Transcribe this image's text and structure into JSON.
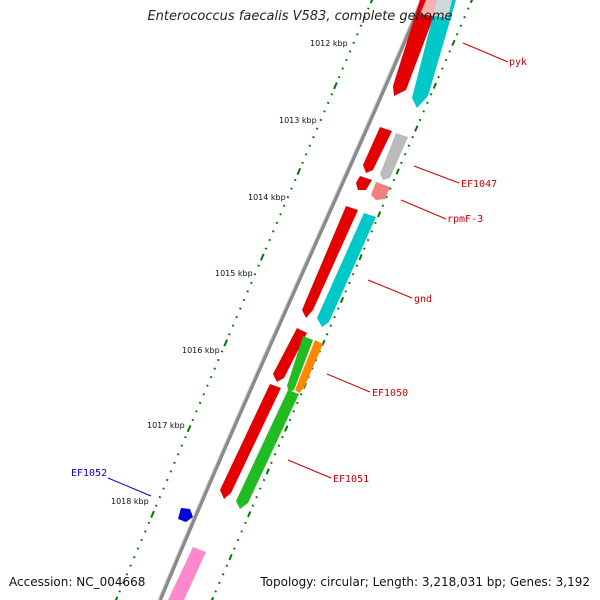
{
  "title": "Enterococcus faecalis V583, complete genome",
  "footer": {
    "accession": "Accession: NC_004668",
    "summary": "Topology: circular; Length: 3,218,031 bp; Genes: 3,192"
  },
  "ruler_labels": [
    "1012 kbp",
    "1013 kbp",
    "1014 kbp",
    "1015 kbp",
    "1016 kbp",
    "1017 kbp",
    "1018 kbp"
  ],
  "gene_labels": [
    "pyk",
    "EF1047",
    "rpmF-3",
    "gnd",
    "EF1050",
    "EF1051",
    "EF1052"
  ],
  "colors": {
    "forward_genes": "#e00000",
    "reverse_genes": "#00cccc",
    "pseudo_gray": "#bbbbbb",
    "rna": "#f08080",
    "green_genes": "#22bb22",
    "orange_gene": "#ff8800",
    "blue_gene": "#0000dd",
    "pink_gene": "#ff88cc",
    "label_red": "#cc0000",
    "label_blue": "#0000cc",
    "tick_green": "#007700",
    "backbone": "#888888"
  }
}
